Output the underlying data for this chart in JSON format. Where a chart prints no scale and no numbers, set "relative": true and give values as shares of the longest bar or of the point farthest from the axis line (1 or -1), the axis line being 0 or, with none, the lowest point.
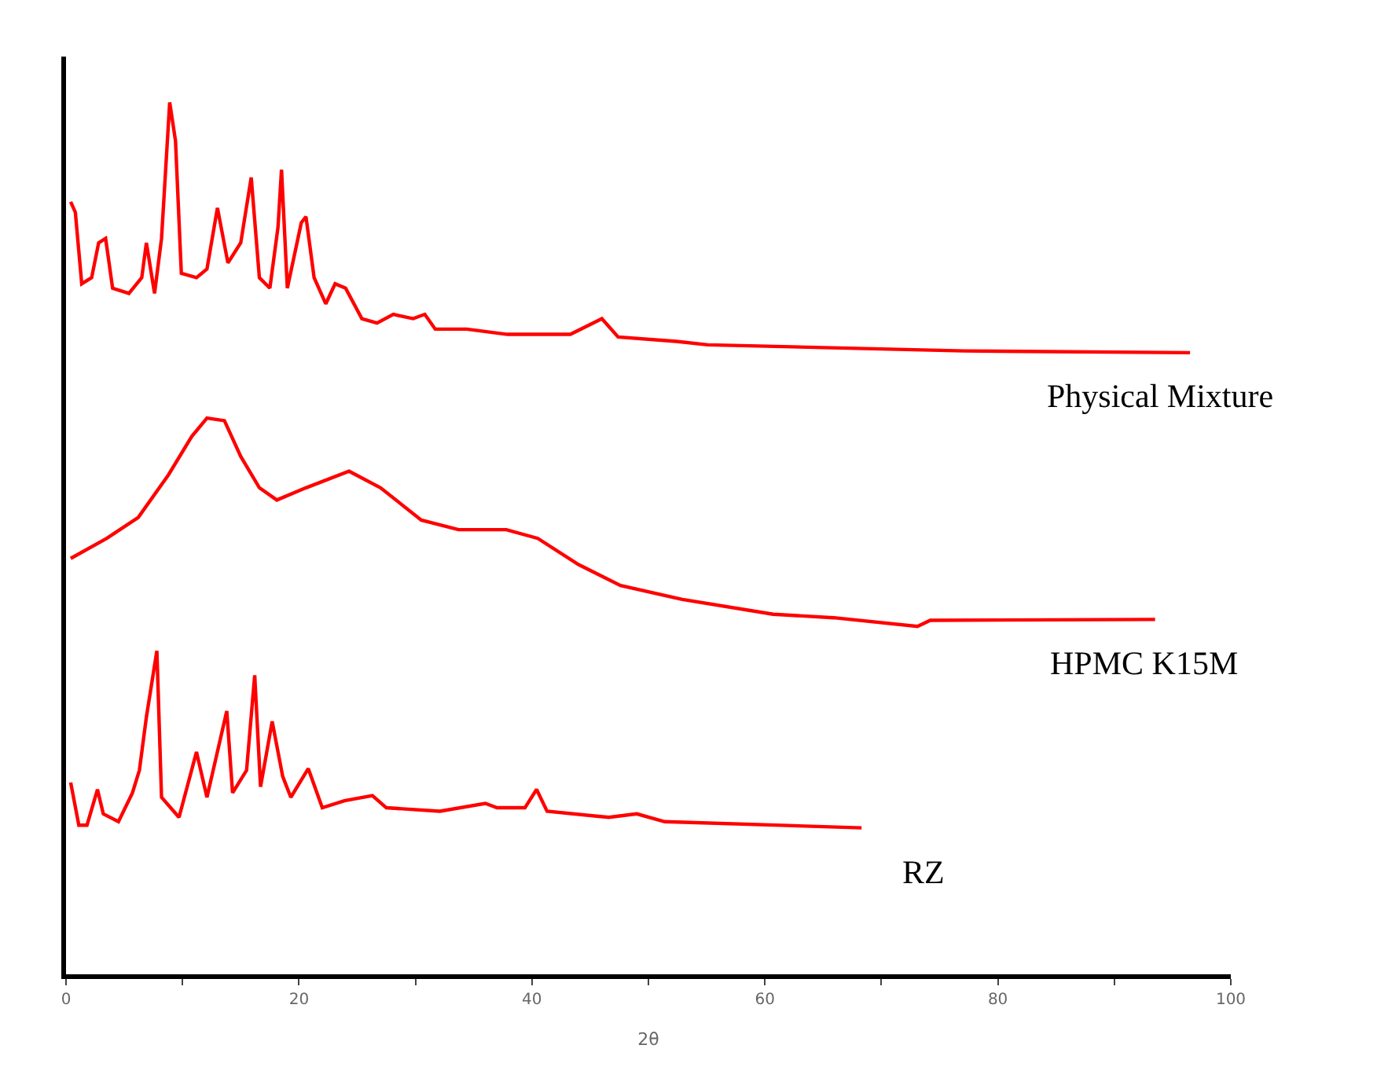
{
  "chart_data": {
    "type": "line",
    "relative": true,
    "xlabel": "2θ",
    "xlim": [
      0,
      100
    ],
    "xticks": [
      0,
      {
        "value": 10,
        "label": null
      },
      20,
      {
        "value": 30,
        "label": null
      },
      40,
      {
        "value": 50,
        "label": null
      },
      60,
      {
        "value": 70,
        "label": null
      },
      80,
      {
        "value": 90,
        "label": null
      },
      100
    ],
    "legend": false,
    "grid": false,
    "marker": "none",
    "line_style": "solid",
    "tick_labels": "x",
    "series": [
      {
        "name": "Physical Mixture",
        "color": "#ff0000",
        "x": [
          0.4,
          0.8,
          1.35,
          2.2,
          2.8,
          3.4,
          4.0,
          5.4,
          6.5,
          6.9,
          7.6,
          8.2,
          8.9,
          9.4,
          9.9,
          11.2,
          12.1,
          13.0,
          13.9,
          15.0,
          15.9,
          16.6,
          17.5,
          18.2,
          18.5,
          19.0,
          20.2,
          20.6,
          21.3,
          22.3,
          23.1,
          24.0,
          25.4,
          26.7,
          28.1,
          29.8,
          30.8,
          31.7,
          34.4,
          37.9,
          43.3,
          46.0,
          47.4,
          52.4,
          55.1,
          77.1,
          96.5
        ],
        "values": [
          0.886,
          0.874,
          0.792,
          0.799,
          0.839,
          0.844,
          0.787,
          0.781,
          0.799,
          0.839,
          0.781,
          0.844,
          1.0,
          0.956,
          0.804,
          0.799,
          0.809,
          0.879,
          0.816,
          0.839,
          0.914,
          0.799,
          0.787,
          0.857,
          0.923,
          0.787,
          0.862,
          0.869,
          0.799,
          0.769,
          0.792,
          0.787,
          0.752,
          0.747,
          0.757,
          0.752,
          0.757,
          0.74,
          0.74,
          0.734,
          0.734,
          0.752,
          0.731,
          0.726,
          0.722,
          0.715,
          0.713
        ]
      },
      {
        "name": "HPMC K15M",
        "color": "#ff0000",
        "x": [
          0.4,
          3.5,
          6.2,
          8.8,
          10.8,
          12.1,
          13.6,
          15.0,
          16.6,
          18.1,
          20.6,
          24.3,
          27.0,
          30.5,
          33.7,
          37.8,
          40.5,
          44.0,
          47.6,
          52.9,
          60.7,
          65.9,
          73.1,
          74.2,
          93.5
        ],
        "values": [
          0.477,
          0.5,
          0.524,
          0.573,
          0.617,
          0.638,
          0.635,
          0.594,
          0.558,
          0.544,
          0.558,
          0.577,
          0.558,
          0.521,
          0.51,
          0.51,
          0.5,
          0.47,
          0.446,
          0.43,
          0.413,
          0.409,
          0.399,
          0.406,
          0.407
        ]
      },
      {
        "name": "RZ",
        "color": "#ff0000",
        "x": [
          0.4,
          1.1,
          1.8,
          2.7,
          3.2,
          4.5,
          5.7,
          6.3,
          6.9,
          7.8,
          8.2,
          9.7,
          11.2,
          12.1,
          13.8,
          14.3,
          15.5,
          16.2,
          16.7,
          17.7,
          18.6,
          19.3,
          20.8,
          22.0,
          23.9,
          26.3,
          27.5,
          32.1,
          36.0,
          37.0,
          39.4,
          40.4,
          41.3,
          46.6,
          49.0,
          51.4,
          68.3
        ],
        "values": [
          0.22,
          0.171,
          0.171,
          0.212,
          0.184,
          0.175,
          0.208,
          0.234,
          0.295,
          0.371,
          0.203,
          0.18,
          0.255,
          0.203,
          0.302,
          0.208,
          0.234,
          0.343,
          0.215,
          0.29,
          0.227,
          0.203,
          0.236,
          0.191,
          0.199,
          0.205,
          0.191,
          0.187,
          0.196,
          0.191,
          0.191,
          0.212,
          0.187,
          0.18,
          0.184,
          0.175,
          0.168
        ]
      }
    ]
  }
}
